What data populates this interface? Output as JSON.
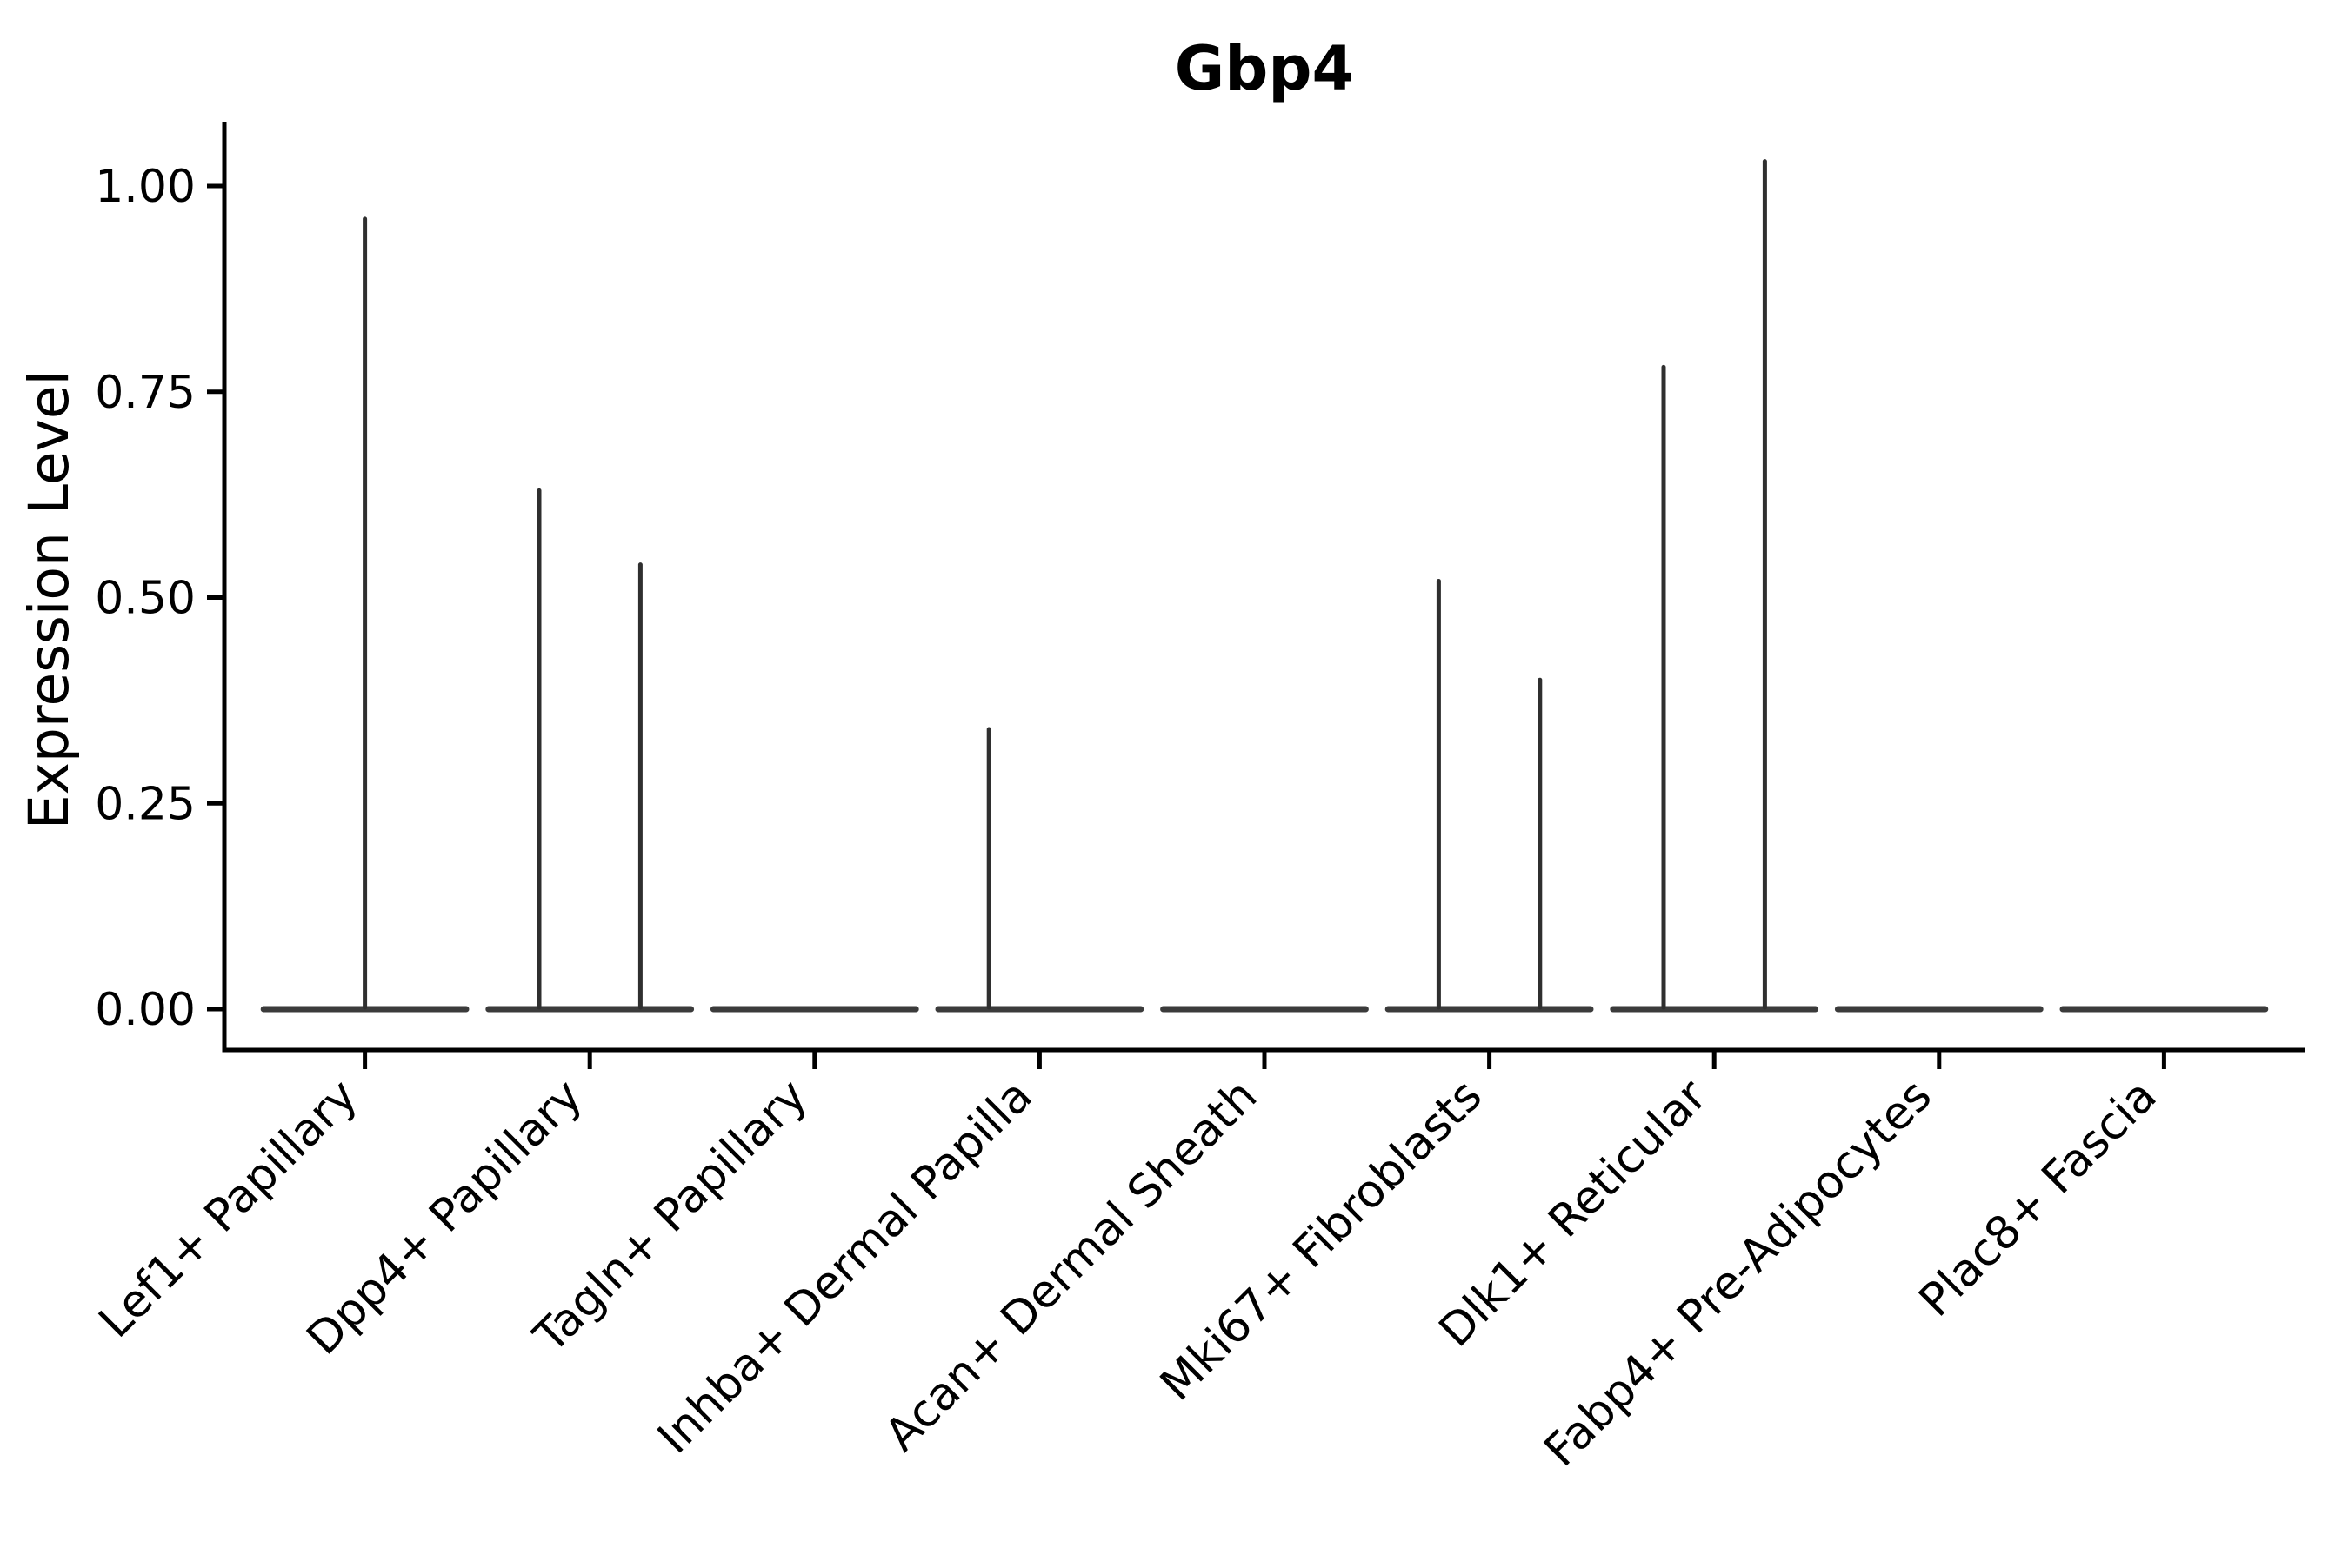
{
  "chart_data": {
    "type": "violin",
    "title": "Gbp4",
    "xlabel": "",
    "ylabel": "Expression Level",
    "grid": false,
    "legend": false,
    "ylim": [
      -0.05,
      1.08
    ],
    "y_ticks": [
      {
        "value": 0.0,
        "label": "0.00"
      },
      {
        "value": 0.25,
        "label": "0.25"
      },
      {
        "value": 0.5,
        "label": "0.50"
      },
      {
        "value": 0.75,
        "label": "0.75"
      },
      {
        "value": 1.0,
        "label": "1.00"
      }
    ],
    "categories": [
      "Lef1+ Papillary",
      "Dpp4+ Papillary",
      "Tagln+ Papillary",
      "Inhba+ Dermal Papilla",
      "Acan+ Dermal Sheath",
      "Mki67+ Fibroblasts",
      "Dlk1+ Reticular",
      "Fabp4+ Pre-Adipocytes",
      "Plac8+ Fascia"
    ],
    "violins": [
      {
        "category": "Lef1+ Papillary",
        "baseline_value": 0,
        "spikes": [
          {
            "side": "center",
            "value": 0.96
          }
        ]
      },
      {
        "category": "Dpp4+ Papillary",
        "baseline_value": 0,
        "spikes": [
          {
            "side": "left",
            "value": 0.63
          },
          {
            "side": "right",
            "value": 0.54
          }
        ]
      },
      {
        "category": "Tagln+ Papillary",
        "baseline_value": 0,
        "spikes": []
      },
      {
        "category": "Inhba+ Dermal Papilla",
        "baseline_value": 0,
        "spikes": [
          {
            "side": "left",
            "value": 0.34
          }
        ]
      },
      {
        "category": "Acan+ Dermal Sheath",
        "baseline_value": 0,
        "spikes": []
      },
      {
        "category": "Mki67+ Fibroblasts",
        "baseline_value": 0,
        "spikes": [
          {
            "side": "left",
            "value": 0.52
          },
          {
            "side": "right",
            "value": 0.4
          }
        ]
      },
      {
        "category": "Dlk1+ Reticular",
        "baseline_value": 0,
        "spikes": [
          {
            "side": "left",
            "value": 0.78
          },
          {
            "side": "right",
            "value": 1.03
          }
        ]
      },
      {
        "category": "Fabp4+ Pre-Adipocytes",
        "baseline_value": 0,
        "spikes": []
      },
      {
        "category": "Plac8+ Fascia",
        "baseline_value": 0,
        "spikes": []
      }
    ],
    "colors": {
      "background": "#ffffff",
      "axis": "#000000",
      "text": "#000000",
      "violin_baseline": "#3b3b3b",
      "violin_spike": "#2f2f2f"
    }
  }
}
